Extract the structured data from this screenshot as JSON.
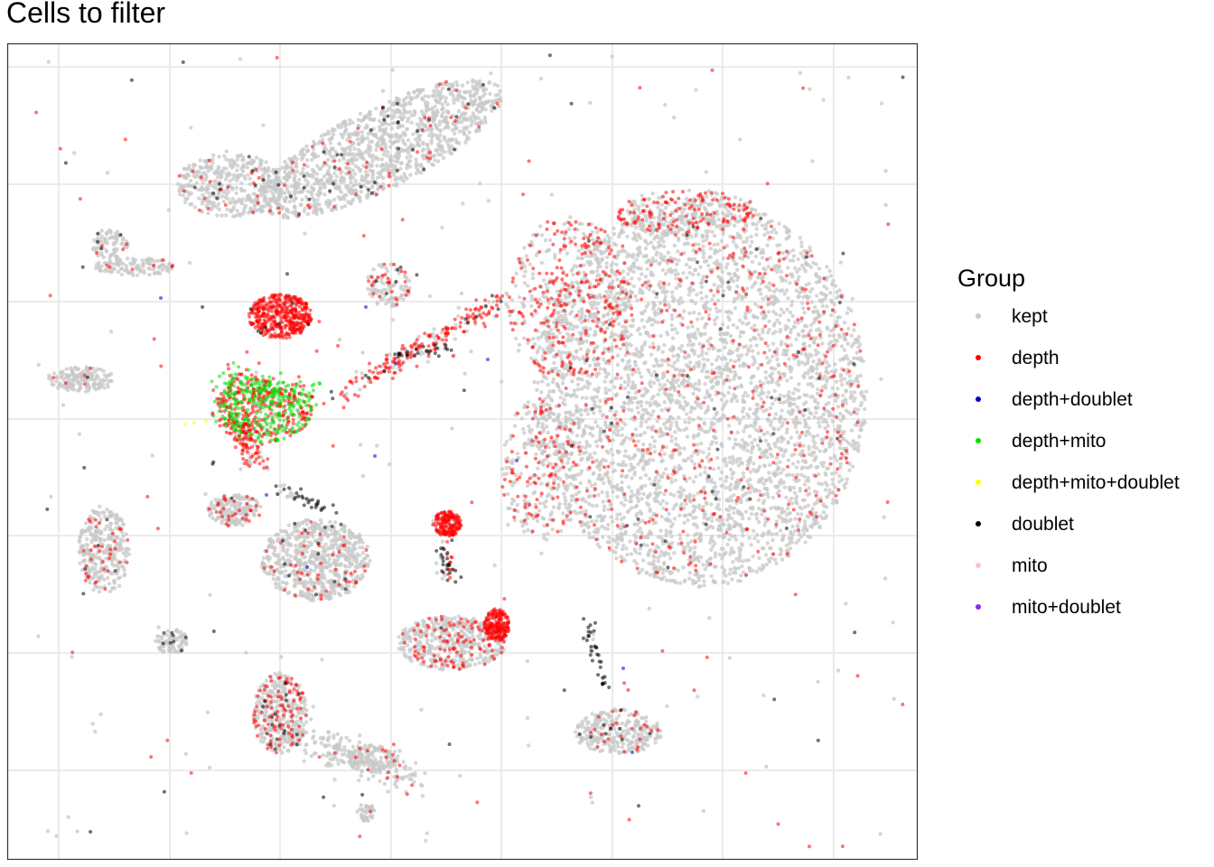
{
  "title": "Cells to filter",
  "legend": {
    "title": "Group",
    "items": [
      {
        "label": "kept",
        "color": "#c8c8c8"
      },
      {
        "label": "depth",
        "color": "#ff0000"
      },
      {
        "label": "depth+doublet",
        "color": "#0000cd"
      },
      {
        "label": "depth+mito",
        "color": "#00e000"
      },
      {
        "label": "depth+mito+doublet",
        "color": "#ffff00"
      },
      {
        "label": "doublet",
        "color": "#000000"
      },
      {
        "label": "mito",
        "color": "#ffc0cb"
      },
      {
        "label": "mito+doublet",
        "color": "#8a2be2"
      }
    ]
  },
  "chart_data": {
    "type": "scatter",
    "title": "Cells to filter",
    "xlabel": "",
    "ylabel": "",
    "grid": true,
    "axis_ticks_shown": false,
    "legend_position": "right",
    "legend_title": "Group",
    "series": [
      {
        "name": "kept",
        "color": "#c8c8c8"
      },
      {
        "name": "depth",
        "color": "#ff0000"
      },
      {
        "name": "depth+doublet",
        "color": "#0000cd"
      },
      {
        "name": "depth+mito",
        "color": "#00e000"
      },
      {
        "name": "depth+mito+doublet",
        "color": "#ffff00"
      },
      {
        "name": "doublet",
        "color": "#000000"
      },
      {
        "name": "mito",
        "color": "#ffc0cb"
      },
      {
        "name": "mito+doublet",
        "color": "#8a2be2"
      }
    ]
  }
}
